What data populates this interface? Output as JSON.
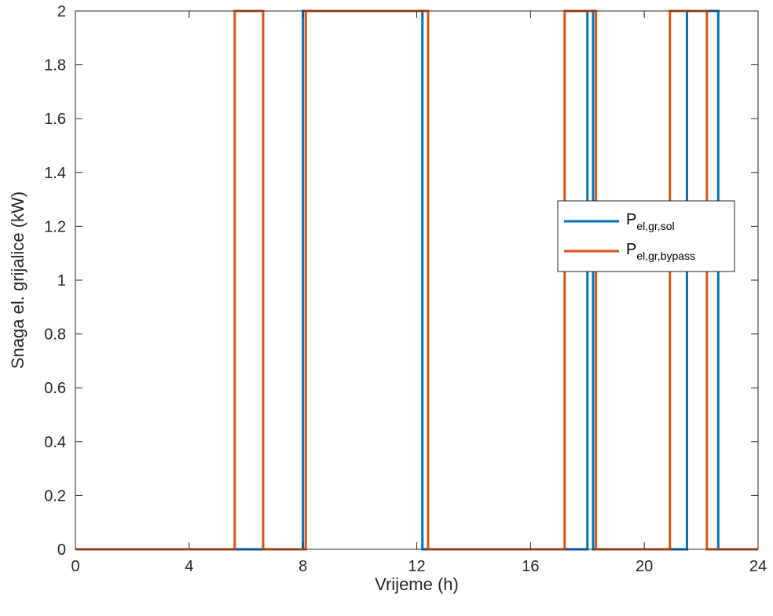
{
  "chart_data": {
    "type": "line",
    "title": "",
    "xlabel": "Vrijeme (h)",
    "ylabel": "Snaga el. grijalice (kW)",
    "xlim": [
      0,
      24
    ],
    "ylim": [
      0,
      2
    ],
    "xticks": [
      0,
      4,
      8,
      12,
      16,
      20,
      24
    ],
    "yticks": [
      0,
      0.2,
      0.4,
      0.6,
      0.8,
      1,
      1.2,
      1.4,
      1.6,
      1.8,
      2
    ],
    "xtick_labels": [
      "0",
      "4",
      "8",
      "12",
      "16",
      "20",
      "24"
    ],
    "ytick_labels": [
      "0",
      "0.2",
      "0.4",
      "0.6",
      "0.8",
      "1",
      "1.2",
      "1.4",
      "1.6",
      "1.8",
      "2"
    ],
    "grid": false,
    "legend_position": "center-right",
    "series": [
      {
        "name": "P_el,gr,sol",
        "label_main": "P",
        "label_sub": "el,gr,sol",
        "color": "#0072BD",
        "x": [
          0,
          8.0,
          8.0,
          12.2,
          12.2,
          18.0,
          18.0,
          18.2,
          18.2,
          21.5,
          21.5,
          22.6,
          22.6,
          24
        ],
        "y": [
          0,
          0,
          2,
          2,
          0,
          0,
          2,
          2,
          0,
          0,
          2,
          2,
          0,
          0
        ]
      },
      {
        "name": "P_el,gr,bypass",
        "label_main": "P",
        "label_sub": "el,gr,bypass",
        "color": "#D95319",
        "x": [
          0,
          5.6,
          5.6,
          6.6,
          6.6,
          8.1,
          8.1,
          12.4,
          12.4,
          17.2,
          17.2,
          18.3,
          18.3,
          20.9,
          20.9,
          22.2,
          22.2,
          24
        ],
        "y": [
          0,
          0,
          2,
          2,
          0,
          0,
          2,
          2,
          0,
          0,
          2,
          2,
          0,
          0,
          2,
          2,
          0,
          0
        ]
      }
    ]
  }
}
